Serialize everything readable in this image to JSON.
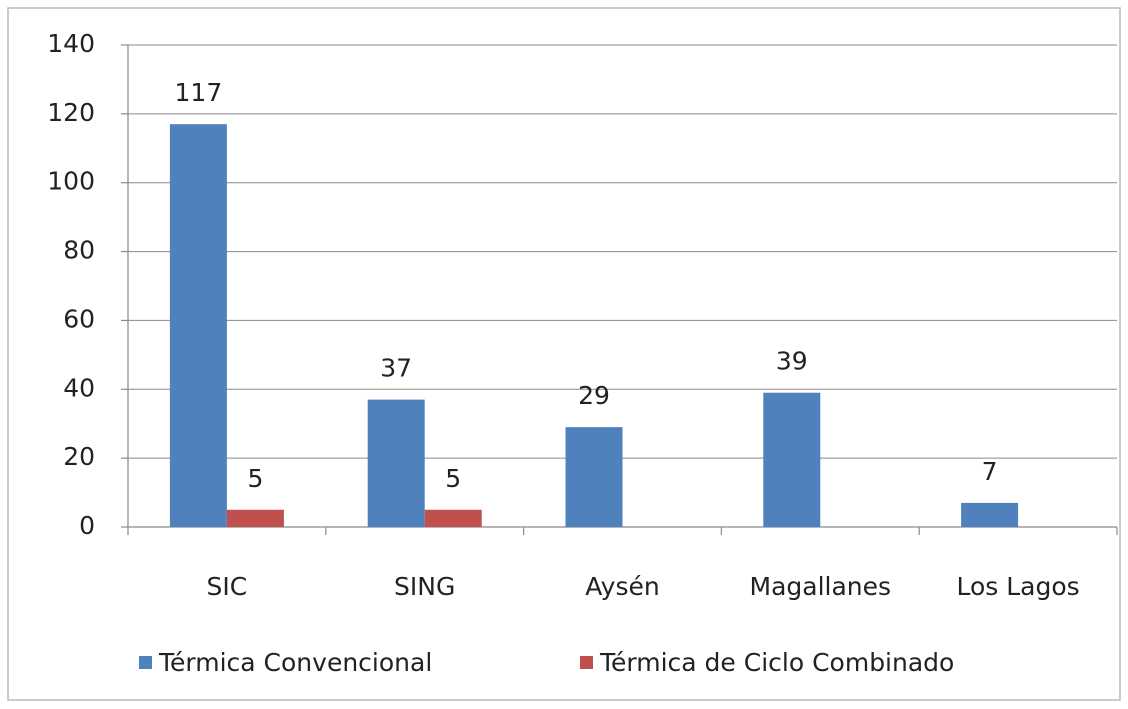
{
  "chart_data": {
    "type": "bar",
    "categories": [
      "SIC",
      "SING",
      "Aysén",
      "Magallanes",
      "Los Lagos"
    ],
    "series": [
      {
        "name": "Térmica Convencional",
        "color": "#4f81bd",
        "values": [
          117,
          37,
          29,
          39,
          7
        ]
      },
      {
        "name": "Térmica de Ciclo Combinado",
        "color": "#c0504d",
        "values": [
          5,
          5,
          null,
          null,
          null
        ]
      }
    ],
    "ylim": [
      0,
      140
    ],
    "yticks": [
      0,
      20,
      40,
      60,
      80,
      100,
      120,
      140
    ],
    "grid": true,
    "legend": "bottom"
  }
}
